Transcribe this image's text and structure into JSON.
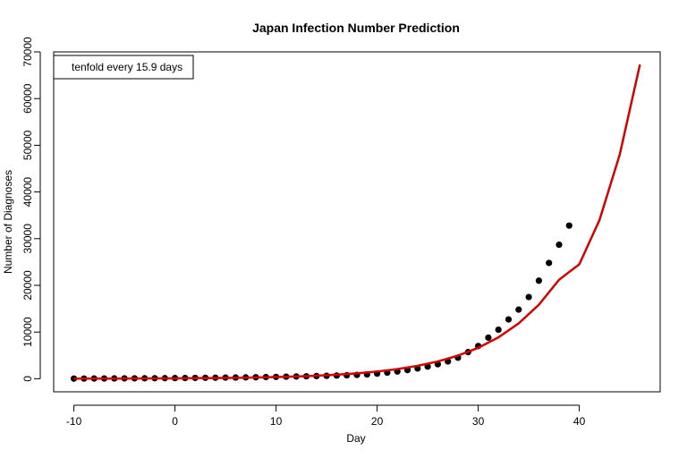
{
  "chart_data": {
    "type": "scatter",
    "title": "Japan  Infection Number Prediction",
    "xlabel": "Day",
    "ylabel": "Number of Diagnoses",
    "xlim": [
      -12,
      48
    ],
    "ylim": [
      -2800,
      70000
    ],
    "x_ticks": [
      -10,
      0,
      10,
      20,
      30,
      40
    ],
    "y_ticks": [
      0,
      10000,
      20000,
      30000,
      40000,
      50000,
      60000,
      70000
    ],
    "grid": false,
    "legend": {
      "placement": "top-left",
      "text": "tenfold every  15.9  days"
    },
    "series": [
      {
        "kind": "points",
        "color": "#000000",
        "x": [
          -10,
          -9,
          -8,
          -7,
          -6,
          -5,
          -4,
          -3,
          -2,
          -1,
          0,
          1,
          2,
          3,
          4,
          5,
          6,
          7,
          8,
          9,
          10,
          11,
          12,
          13,
          14,
          15,
          16,
          17,
          18,
          19,
          20,
          21,
          22,
          23,
          24,
          25,
          26,
          27,
          28,
          29,
          30,
          31,
          32,
          33,
          34,
          35,
          36,
          37,
          38,
          39
        ],
        "y": [
          30,
          40,
          50,
          60,
          70,
          80,
          90,
          100,
          110,
          120,
          140,
          160,
          180,
          200,
          220,
          240,
          260,
          290,
          320,
          360,
          400,
          440,
          480,
          520,
          570,
          620,
          680,
          740,
          820,
          920,
          1100,
          1300,
          1550,
          1850,
          2200,
          2600,
          3100,
          3700,
          4500,
          5700,
          7000,
          8800,
          10500,
          12700,
          14800,
          17500,
          21000,
          24800,
          28700,
          32800
        ]
      },
      {
        "kind": "line",
        "color": "#d40000",
        "x": [
          -10,
          -8,
          -6,
          -4,
          -2,
          0,
          2,
          4,
          6,
          8,
          10,
          12,
          14,
          16,
          18,
          20,
          22,
          24,
          26,
          28,
          30,
          32,
          34,
          36,
          38,
          40,
          42,
          44,
          46
        ],
        "y": [
          20,
          26,
          35,
          47,
          63,
          84,
          113,
          151,
          202,
          270,
          361,
          483,
          646,
          864,
          1156,
          1546,
          2067,
          2766,
          3700,
          4950,
          6620,
          8860,
          11850,
          15850,
          21200,
          24500,
          34000,
          48000,
          67300
        ]
      }
    ]
  }
}
